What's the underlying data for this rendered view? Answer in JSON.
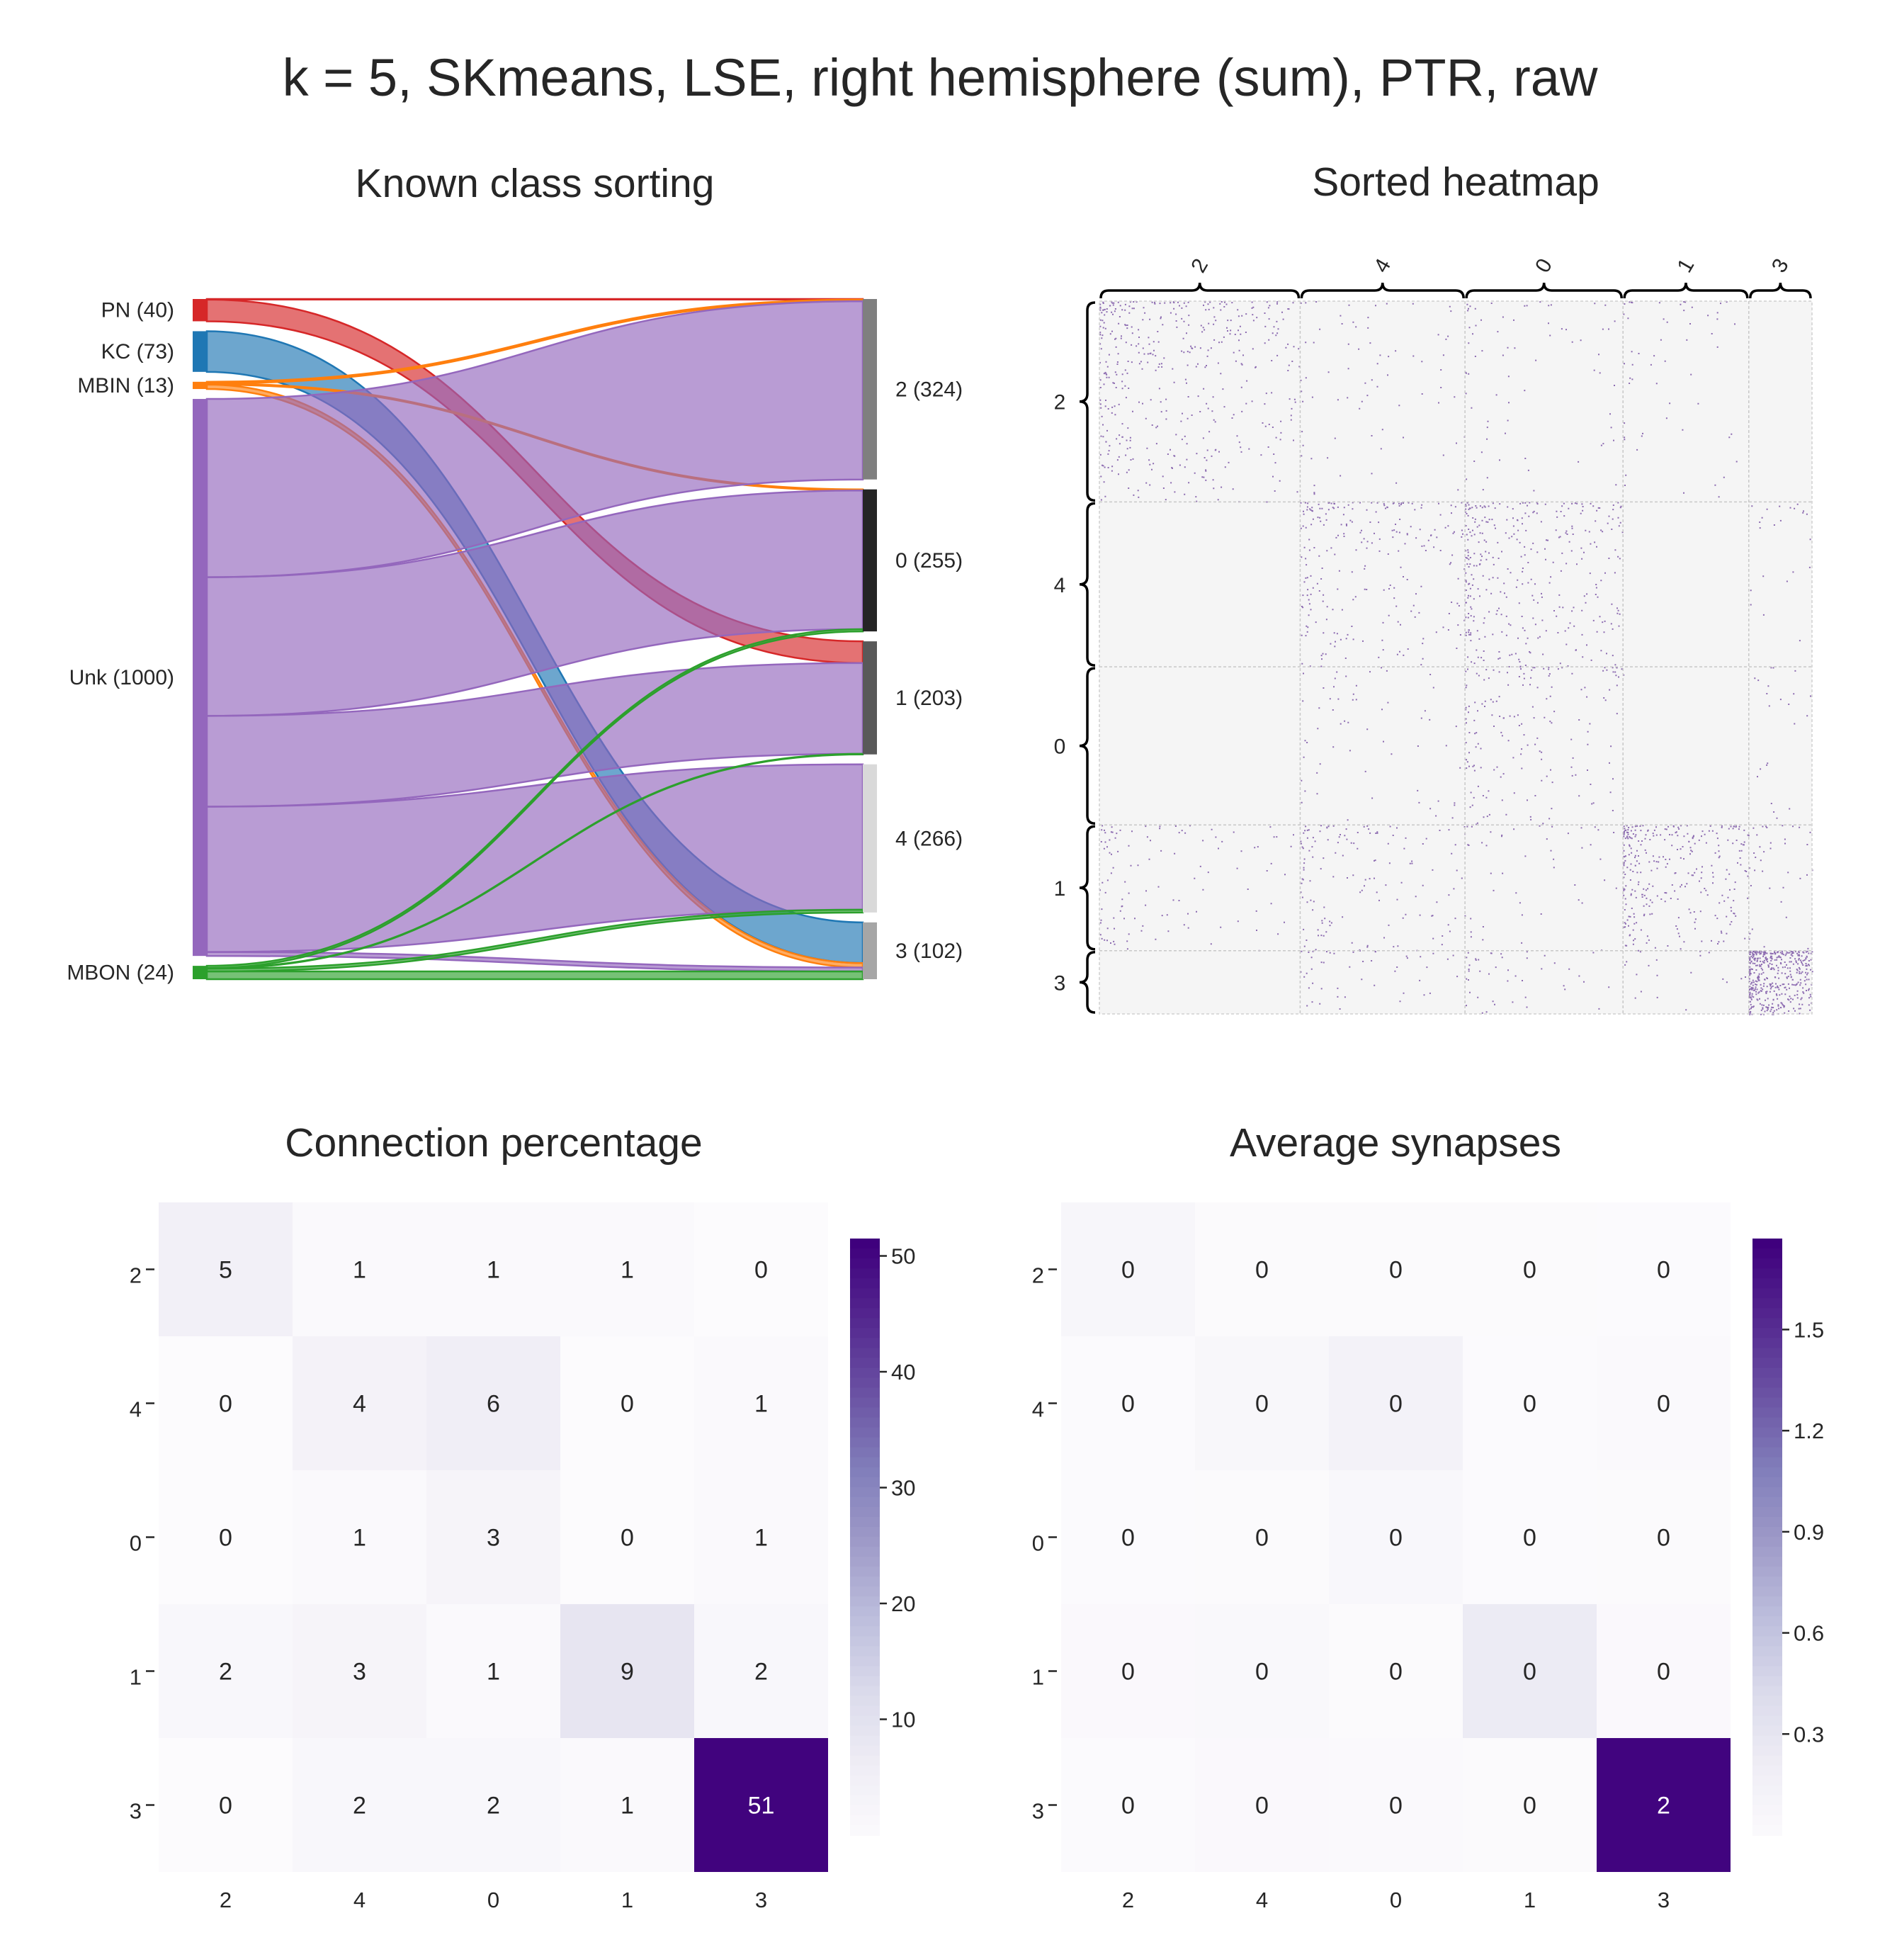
{
  "figure": {
    "title": "k = 5, SKmeans, LSE, right hemisphere (sum), PTR, raw"
  },
  "panels": {
    "sankey_title": "Known class sorting",
    "sorted_heatmap_title": "Sorted heatmap",
    "connection_title": "Connection percentage",
    "synapse_title": "Average synapses"
  },
  "chart_data": [
    {
      "type": "sankey",
      "title": "Known class sorting",
      "sources": [
        {
          "name": "PN",
          "count": 40,
          "label": "PN (40)",
          "color": "#d62728"
        },
        {
          "name": "KC",
          "count": 73,
          "label": "KC (73)",
          "color": "#1f77b4"
        },
        {
          "name": "MBIN",
          "count": 13,
          "label": "MBIN (13)",
          "color": "#ff7f0e"
        },
        {
          "name": "Unk",
          "count": 1000,
          "label": "Unk (1000)",
          "color": "#9467bd"
        },
        {
          "name": "MBON",
          "count": 24,
          "label": "MBON (24)",
          "color": "#2ca02c"
        }
      ],
      "targets": [
        {
          "name": "2",
          "count": 324,
          "label": "2 (324)",
          "color": "#7f7f7f"
        },
        {
          "name": "0",
          "count": 255,
          "label": "0 (255)",
          "color": "#252525"
        },
        {
          "name": "1",
          "count": 203,
          "label": "1 (203)",
          "color": "#595959"
        },
        {
          "name": "4",
          "count": 266,
          "label": "4 (266)",
          "color": "#d9d9d9"
        },
        {
          "name": "3",
          "count": 102,
          "label": "3 (102)",
          "color": "#a6a6a6"
        }
      ],
      "flows": [
        {
          "source": "PN",
          "target": "2",
          "value": 1
        },
        {
          "source": "PN",
          "target": "1",
          "value": 39
        },
        {
          "source": "KC",
          "target": "3",
          "value": 73
        },
        {
          "source": "MBIN",
          "target": "2",
          "value": 3
        },
        {
          "source": "MBIN",
          "target": "0",
          "value": 2
        },
        {
          "source": "MBIN",
          "target": "3",
          "value": 8
        },
        {
          "source": "Unk",
          "target": "2",
          "value": 320
        },
        {
          "source": "Unk",
          "target": "0",
          "value": 249
        },
        {
          "source": "Unk",
          "target": "1",
          "value": 163
        },
        {
          "source": "Unk",
          "target": "4",
          "value": 261
        },
        {
          "source": "Unk",
          "target": "3",
          "value": 7
        },
        {
          "source": "MBON",
          "target": "0",
          "value": 4
        },
        {
          "source": "MBON",
          "target": "1",
          "value": 1
        },
        {
          "source": "MBON",
          "target": "4",
          "value": 5
        },
        {
          "source": "MBON",
          "target": "3",
          "value": 14
        }
      ]
    },
    {
      "type": "heatmap",
      "title": "Sorted heatmap",
      "block_order": [
        "2",
        "4",
        "0",
        "1",
        "3"
      ],
      "block_sizes": [
        324,
        266,
        255,
        203,
        102
      ],
      "colormap": "Purples"
    },
    {
      "type": "heatmap",
      "title": "Connection percentage",
      "rows": [
        "2",
        "4",
        "0",
        "1",
        "3"
      ],
      "cols": [
        "2",
        "4",
        "0",
        "1",
        "3"
      ],
      "values": [
        [
          5,
          1,
          1,
          1,
          0
        ],
        [
          0,
          4,
          6,
          0,
          1
        ],
        [
          0,
          1,
          3,
          0,
          1
        ],
        [
          2,
          3,
          1,
          9,
          2
        ],
        [
          0,
          2,
          2,
          1,
          51
        ]
      ],
      "annotations": [
        [
          "5",
          "1",
          "1",
          "1",
          "0"
        ],
        [
          "0",
          "4",
          "6",
          "0",
          "1"
        ],
        [
          "0",
          "1",
          "3",
          "0",
          "1"
        ],
        [
          "2",
          "3",
          "1",
          "9",
          "2"
        ],
        [
          "0",
          "2",
          "2",
          "1",
          "51"
        ]
      ],
      "vmin": 0,
      "vmax": 51.5,
      "colorbar_ticks": [
        10,
        20,
        30,
        40,
        50
      ],
      "colorbar_labels": [
        "10",
        "20",
        "30",
        "40",
        "50"
      ],
      "colormap": "Purples"
    },
    {
      "type": "heatmap",
      "title": "Average synapses",
      "rows": [
        "2",
        "4",
        "0",
        "1",
        "3"
      ],
      "cols": [
        "2",
        "4",
        "0",
        "1",
        "3"
      ],
      "values": [
        [
          0.08,
          0.02,
          0.02,
          0.02,
          0.01
        ],
        [
          0.01,
          0.07,
          0.15,
          0.01,
          0.03
        ],
        [
          0.01,
          0.02,
          0.06,
          0.01,
          0.02
        ],
        [
          0.04,
          0.05,
          0.02,
          0.25,
          0.04
        ],
        [
          0.01,
          0.04,
          0.03,
          0.02,
          1.75
        ]
      ],
      "annotations": [
        [
          "0",
          "0",
          "0",
          "0",
          "0"
        ],
        [
          "0",
          "0",
          "0",
          "0",
          "0"
        ],
        [
          "0",
          "0",
          "0",
          "0",
          "0"
        ],
        [
          "0",
          "0",
          "0",
          "0",
          "0"
        ],
        [
          "0",
          "0",
          "0",
          "0",
          "2"
        ]
      ],
      "vmin": 0,
      "vmax": 1.77,
      "colorbar_ticks": [
        0.3,
        0.6,
        0.9,
        1.2,
        1.5
      ],
      "colorbar_labels": [
        "0.3",
        "0.6",
        "0.9",
        "1.2",
        "1.5"
      ],
      "colormap": "Purples"
    }
  ]
}
